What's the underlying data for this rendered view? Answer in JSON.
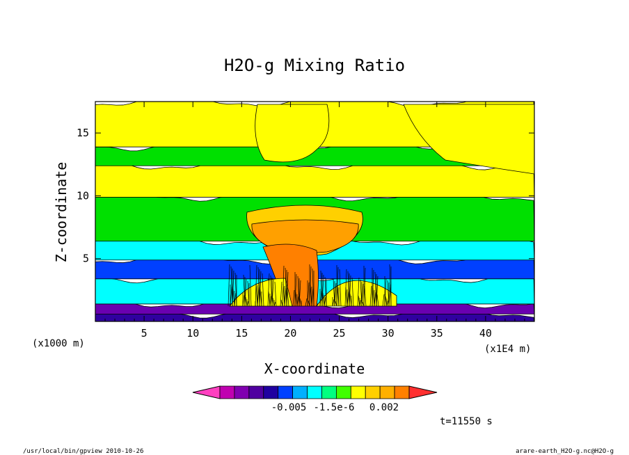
{
  "chart_data": {
    "type": "heatmap",
    "title": "H2O-g Mixing Ratio",
    "xlabel": "X-coordinate",
    "ylabel": "Z-coordinate",
    "x_unit": "(x1E4 m)",
    "y_unit": "(x1000 m)",
    "xlim": [
      0,
      45
    ],
    "ylim": [
      0,
      17.5
    ],
    "x_ticks": [
      "5",
      "10",
      "15",
      "20",
      "25",
      "30",
      "35",
      "40"
    ],
    "y_ticks": [
      "5",
      "10",
      "15"
    ],
    "time_label": "t=11550 s",
    "colorbar": {
      "colors": [
        "#ff40c0",
        "#c000b0",
        "#8000b0",
        "#5000a0",
        "#2000a0",
        "#0040ff",
        "#00b0ff",
        "#00ffff",
        "#00ff80",
        "#40ff00",
        "#ffff00",
        "#ffd000",
        "#ffb000",
        "#ff8000",
        "#ff3030"
      ],
      "tick_labels": [
        "-0.005",
        "-1.5e-6",
        "0.002"
      ]
    },
    "bands": [
      {
        "z0": 0.0,
        "z1": 0.7,
        "color": "#3000a0"
      },
      {
        "z0": 0.7,
        "z1": 1.5,
        "color": "#6a00b0"
      },
      {
        "z0": 1.5,
        "z1": 3.5,
        "color": "#00ffff"
      },
      {
        "z0": 3.5,
        "z1": 5.0,
        "color": "#0040ff"
      },
      {
        "z0": 5.0,
        "z1": 6.5,
        "color": "#00ffff"
      },
      {
        "z0": 6.5,
        "z1": 10.0,
        "color": "#00e000"
      },
      {
        "z0": 10.0,
        "z1": 12.5,
        "color": "#ffff00"
      },
      {
        "z0": 12.5,
        "z1": 14.0,
        "color": "#00e000"
      },
      {
        "z0": 14.0,
        "z1": 17.5,
        "color": "#ffff00"
      }
    ]
  },
  "footer": {
    "left": "/usr/local/bin/gpview  2010-10-26",
    "right": "arare-earth_H2O-g.nc@H2O-g"
  }
}
